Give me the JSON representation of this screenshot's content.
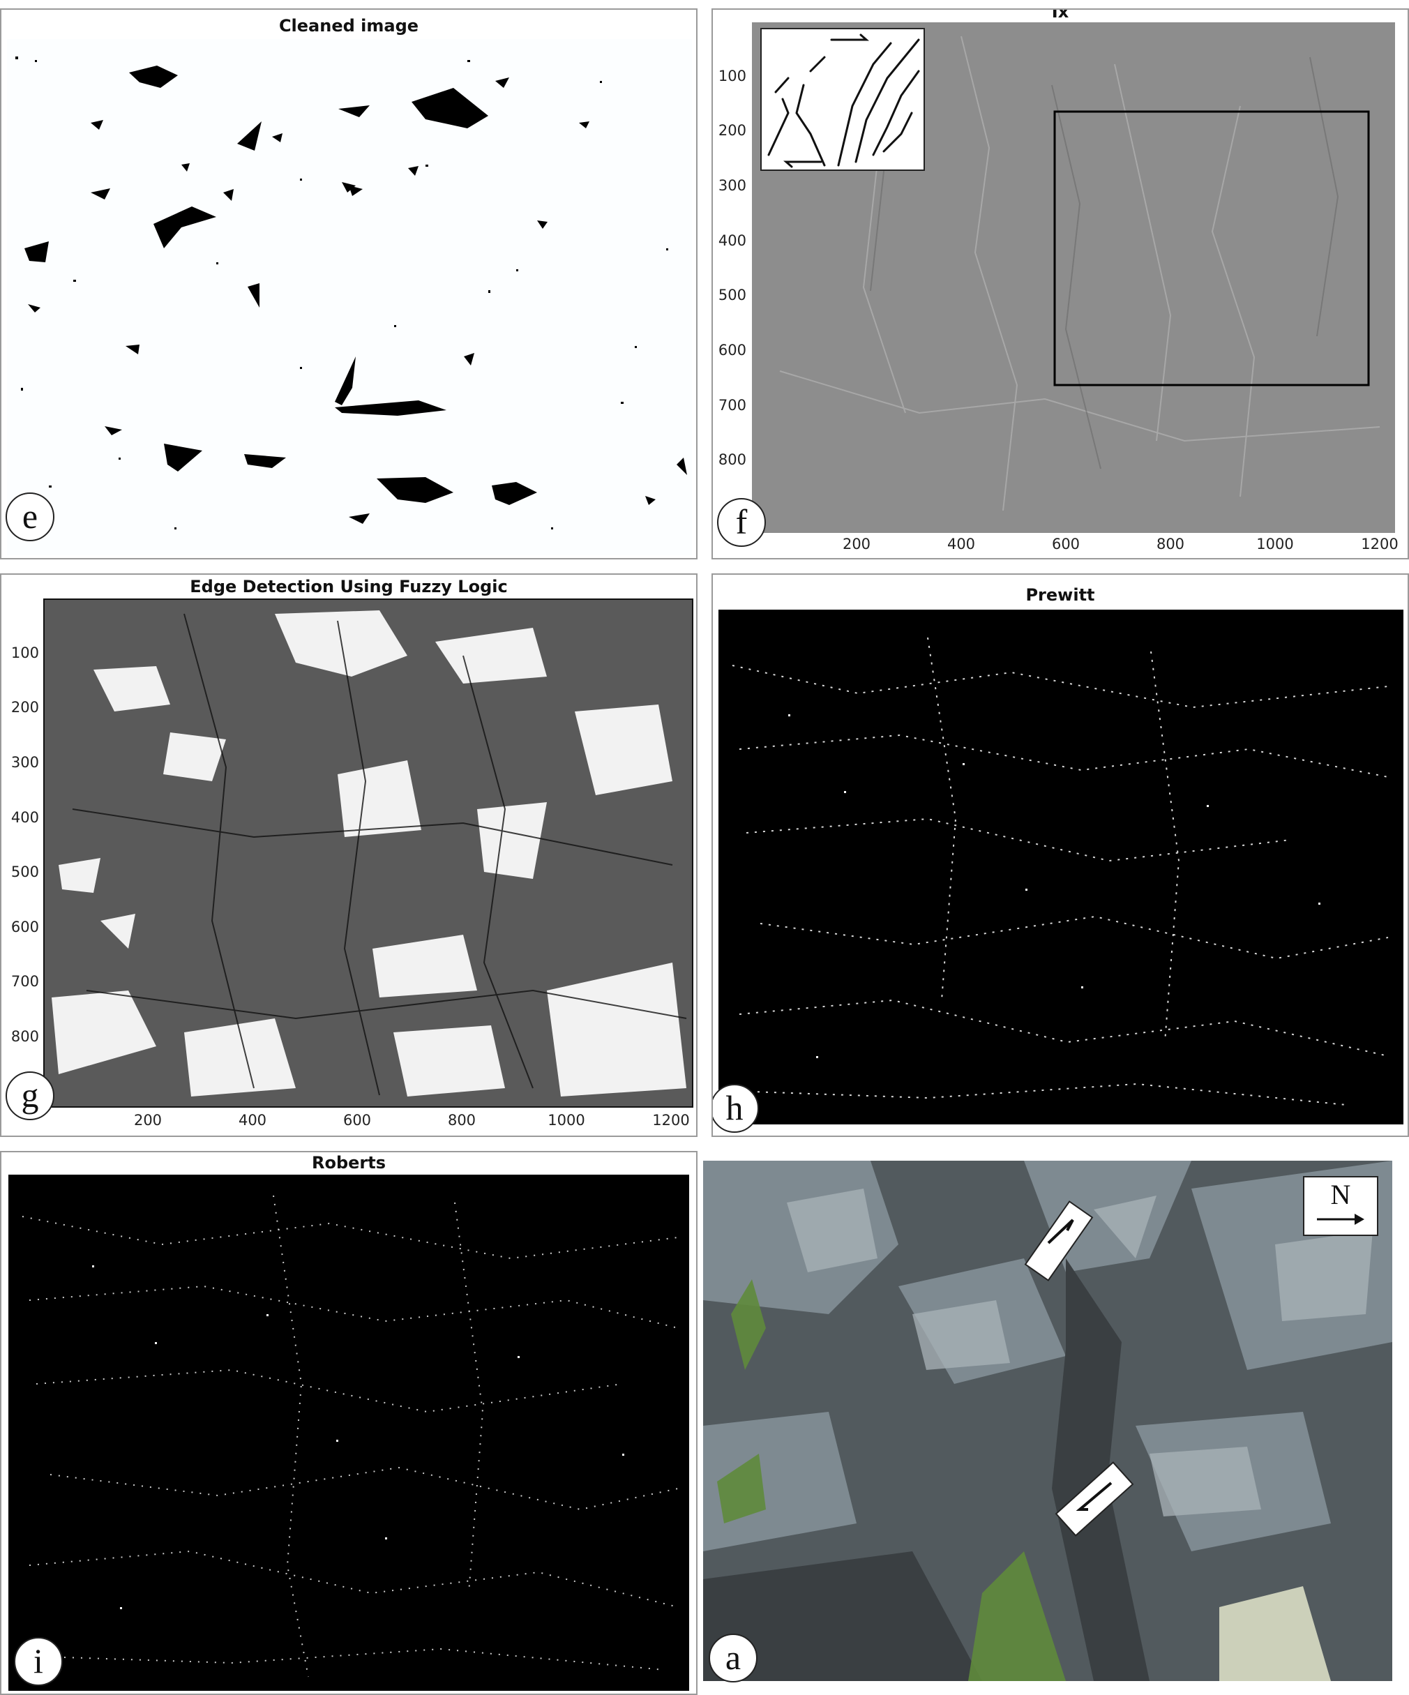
{
  "panels": {
    "e": {
      "label": "e",
      "title": "Cleaned image"
    },
    "f": {
      "label": "f",
      "title": "Ix",
      "y_ticks": [
        "100",
        "200",
        "300",
        "400",
        "500",
        "600",
        "700",
        "800"
      ],
      "x_ticks": [
        "200",
        "400",
        "600",
        "800",
        "1000",
        "1200"
      ]
    },
    "g": {
      "label": "g",
      "title": "Edge Detection Using Fuzzy Logic",
      "y_ticks": [
        "100",
        "200",
        "300",
        "400",
        "500",
        "600",
        "700",
        "800"
      ],
      "x_ticks": [
        "200",
        "400",
        "600",
        "800",
        "1000",
        "1200"
      ]
    },
    "h": {
      "label": "h",
      "title": "Prewitt"
    },
    "i": {
      "label": "i",
      "title": "Roberts"
    },
    "a": {
      "label": "a",
      "compass": "N"
    }
  }
}
